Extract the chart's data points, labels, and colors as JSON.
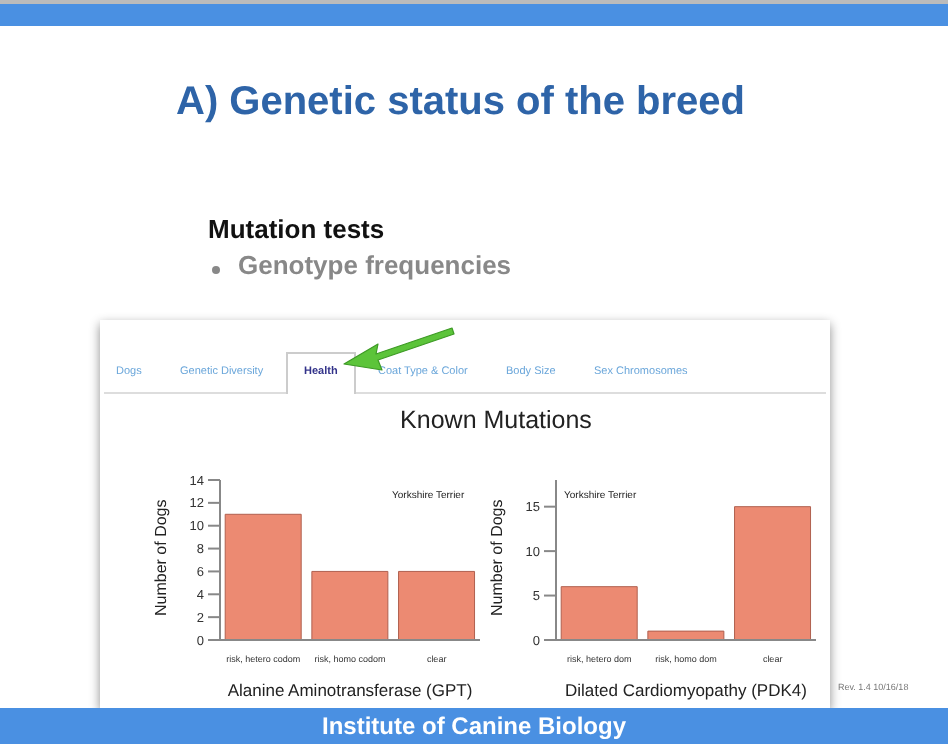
{
  "chart_data": [
    {
      "type": "bar",
      "title": "A) Genetic status of the breed",
      "subtitle": "Mutation tests",
      "annotations": [
        "Genotype frequencies",
        "Dogs",
        "Genetic Diversity",
        "Health",
        "Coat Type & Color",
        "Body Size",
        "Sex Chromosomes",
        "Known Mutations",
        "Yorkshire Terrier"
      ],
      "categories": [
        "risk, hetero codom",
        "risk, homo codom",
        "clear"
      ],
      "values": [
        11,
        6,
        6
      ],
      "color": "#ec8a72",
      "ylim": [
        0,
        14
      ],
      "yticks": [
        0,
        2,
        4,
        6,
        8,
        10,
        12,
        14
      ],
      "xlabel": "Alanine Aminotransferase (GPT)",
      "ylabel": "Number of Dogs"
    },
    {
      "type": "bar",
      "annotations": [
        "Yorkshire Terrier",
        "Rev. 1.4 10/16/18",
        "Institute of Canine Biology"
      ],
      "categories": [
        "risk, hetero dom",
        "risk, homo dom",
        "clear"
      ],
      "values": [
        6,
        1,
        15
      ],
      "color": "#ec8a72",
      "ylim": [
        0,
        18
      ],
      "yticks": [
        0,
        5,
        10,
        15
      ],
      "xlabel": "Dilated Cardiomyopathy (PDK4)",
      "ylabel": "Number of Dogs"
    }
  ]
}
